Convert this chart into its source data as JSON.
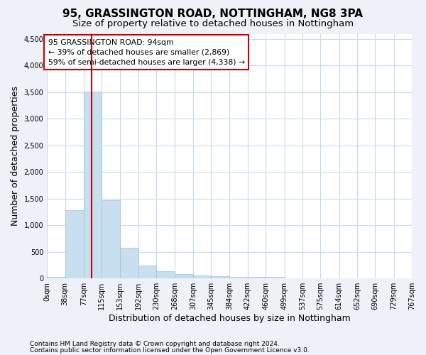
{
  "title": "95, GRASSINGTON ROAD, NOTTINGHAM, NG8 3PA",
  "subtitle": "Size of property relative to detached houses in Nottingham",
  "xlabel": "Distribution of detached houses by size in Nottingham",
  "ylabel": "Number of detached properties",
  "bar_color": "#c8dff0",
  "bar_edge_color": "#a0bfd8",
  "vline_color": "#cc0000",
  "vline_x": 94,
  "bin_edges": [
    0,
    38,
    77,
    115,
    153,
    192,
    230,
    268,
    307,
    345,
    384,
    422,
    460,
    499,
    537,
    575,
    614,
    652,
    690,
    729,
    767
  ],
  "bar_heights": [
    30,
    1280,
    3510,
    1470,
    580,
    240,
    130,
    80,
    55,
    45,
    30,
    30,
    30,
    0,
    0,
    0,
    0,
    0,
    0,
    0
  ],
  "ylim": [
    0,
    4600
  ],
  "yticks": [
    0,
    500,
    1000,
    1500,
    2000,
    2500,
    3000,
    3500,
    4000,
    4500
  ],
  "annotation_text": "95 GRASSINGTON ROAD: 94sqm\n← 39% of detached houses are smaller (2,869)\n59% of semi-detached houses are larger (4,338) →",
  "annotation_box_facecolor": "#ffffff",
  "annotation_box_edgecolor": "#cc0000",
  "footer1": "Contains HM Land Registry data © Crown copyright and database right 2024.",
  "footer2": "Contains public sector information licensed under the Open Government Licence v3.0.",
  "plot_bg_color": "#ffffff",
  "fig_bg_color": "#eef2f8",
  "grid_color": "#c8d8ec",
  "title_fontsize": 11,
  "subtitle_fontsize": 9.5,
  "axis_label_fontsize": 9,
  "tick_label_fontsize": 7,
  "footer_fontsize": 6.5
}
